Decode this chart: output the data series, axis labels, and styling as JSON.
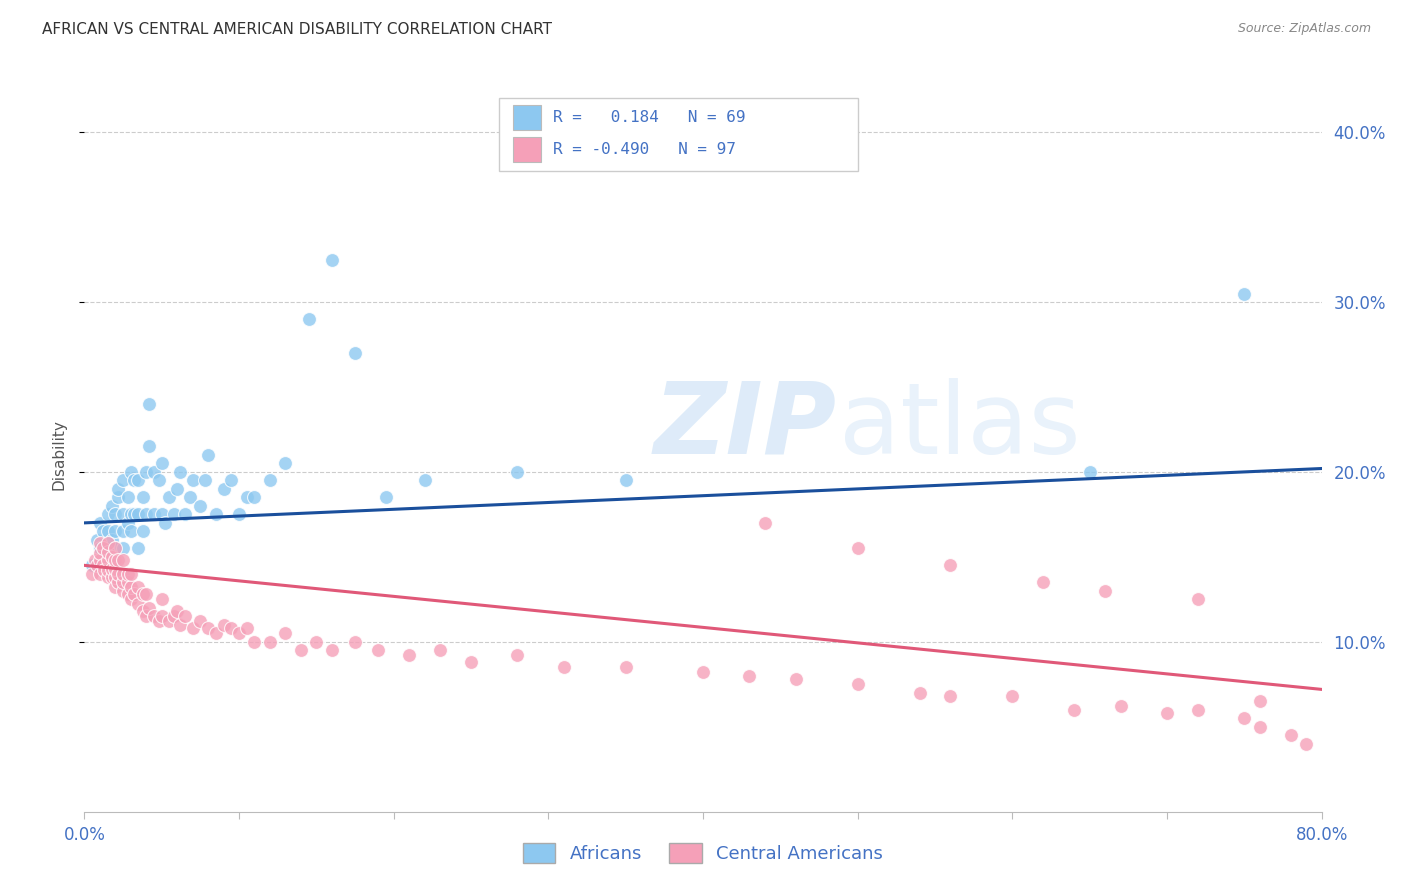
{
  "title": "AFRICAN VS CENTRAL AMERICAN DISABILITY CORRELATION CHART",
  "source": "Source: ZipAtlas.com",
  "ylabel": "Disability",
  "xlim": [
    0.0,
    0.8
  ],
  "ylim": [
    0.0,
    0.42
  ],
  "legend_R_african": "R =  0.184",
  "legend_N_african": "N = 69",
  "legend_R_central": "R = -0.490",
  "legend_N_central": "N = 97",
  "color_african": "#8DC8F0",
  "color_central": "#F5A0B8",
  "color_line_african": "#1A4F9C",
  "color_line_central": "#E05878",
  "color_title": "#333333",
  "color_source": "#888888",
  "color_axis": "#4472C4",
  "background_color": "#FFFFFF",
  "grid_color": "#CCCCCC",
  "african_line_start": 0.17,
  "african_line_end": 0.202,
  "central_line_start": 0.145,
  "central_line_end": 0.072,
  "african_x": [
    0.005,
    0.008,
    0.01,
    0.01,
    0.012,
    0.015,
    0.015,
    0.015,
    0.018,
    0.018,
    0.02,
    0.02,
    0.02,
    0.02,
    0.022,
    0.022,
    0.025,
    0.025,
    0.025,
    0.025,
    0.028,
    0.028,
    0.03,
    0.03,
    0.03,
    0.032,
    0.032,
    0.035,
    0.035,
    0.035,
    0.038,
    0.038,
    0.04,
    0.04,
    0.042,
    0.042,
    0.045,
    0.045,
    0.048,
    0.05,
    0.05,
    0.052,
    0.055,
    0.058,
    0.06,
    0.062,
    0.065,
    0.068,
    0.07,
    0.075,
    0.078,
    0.08,
    0.085,
    0.09,
    0.095,
    0.1,
    0.105,
    0.11,
    0.12,
    0.13,
    0.145,
    0.16,
    0.175,
    0.195,
    0.22,
    0.28,
    0.35,
    0.65,
    0.75
  ],
  "african_y": [
    0.145,
    0.16,
    0.155,
    0.17,
    0.165,
    0.155,
    0.165,
    0.175,
    0.16,
    0.18,
    0.145,
    0.155,
    0.165,
    0.175,
    0.185,
    0.19,
    0.155,
    0.165,
    0.175,
    0.195,
    0.17,
    0.185,
    0.165,
    0.175,
    0.2,
    0.175,
    0.195,
    0.155,
    0.175,
    0.195,
    0.165,
    0.185,
    0.175,
    0.2,
    0.215,
    0.24,
    0.175,
    0.2,
    0.195,
    0.175,
    0.205,
    0.17,
    0.185,
    0.175,
    0.19,
    0.2,
    0.175,
    0.185,
    0.195,
    0.18,
    0.195,
    0.21,
    0.175,
    0.19,
    0.195,
    0.175,
    0.185,
    0.185,
    0.195,
    0.205,
    0.29,
    0.325,
    0.27,
    0.185,
    0.195,
    0.2,
    0.195,
    0.2,
    0.305
  ],
  "central_x": [
    0.005,
    0.007,
    0.008,
    0.01,
    0.01,
    0.01,
    0.01,
    0.012,
    0.012,
    0.013,
    0.015,
    0.015,
    0.015,
    0.015,
    0.015,
    0.018,
    0.018,
    0.018,
    0.02,
    0.02,
    0.02,
    0.02,
    0.02,
    0.022,
    0.022,
    0.022,
    0.025,
    0.025,
    0.025,
    0.025,
    0.028,
    0.028,
    0.028,
    0.03,
    0.03,
    0.03,
    0.032,
    0.035,
    0.035,
    0.038,
    0.038,
    0.04,
    0.04,
    0.042,
    0.045,
    0.048,
    0.05,
    0.05,
    0.055,
    0.058,
    0.06,
    0.062,
    0.065,
    0.07,
    0.075,
    0.08,
    0.085,
    0.09,
    0.095,
    0.1,
    0.105,
    0.11,
    0.12,
    0.13,
    0.14,
    0.15,
    0.16,
    0.175,
    0.19,
    0.21,
    0.23,
    0.25,
    0.28,
    0.31,
    0.35,
    0.4,
    0.43,
    0.46,
    0.5,
    0.54,
    0.56,
    0.6,
    0.64,
    0.67,
    0.7,
    0.72,
    0.75,
    0.76,
    0.78,
    0.79,
    0.44,
    0.5,
    0.56,
    0.62,
    0.66,
    0.72,
    0.76
  ],
  "central_y": [
    0.14,
    0.148,
    0.145,
    0.14,
    0.148,
    0.152,
    0.158,
    0.145,
    0.155,
    0.142,
    0.138,
    0.142,
    0.148,
    0.153,
    0.158,
    0.138,
    0.143,
    0.15,
    0.132,
    0.138,
    0.143,
    0.148,
    0.155,
    0.135,
    0.14,
    0.148,
    0.13,
    0.135,
    0.14,
    0.148,
    0.128,
    0.135,
    0.14,
    0.125,
    0.132,
    0.14,
    0.128,
    0.122,
    0.132,
    0.118,
    0.128,
    0.115,
    0.128,
    0.12,
    0.115,
    0.112,
    0.115,
    0.125,
    0.112,
    0.115,
    0.118,
    0.11,
    0.115,
    0.108,
    0.112,
    0.108,
    0.105,
    0.11,
    0.108,
    0.105,
    0.108,
    0.1,
    0.1,
    0.105,
    0.095,
    0.1,
    0.095,
    0.1,
    0.095,
    0.092,
    0.095,
    0.088,
    0.092,
    0.085,
    0.085,
    0.082,
    0.08,
    0.078,
    0.075,
    0.07,
    0.068,
    0.068,
    0.06,
    0.062,
    0.058,
    0.06,
    0.055,
    0.05,
    0.045,
    0.04,
    0.17,
    0.155,
    0.145,
    0.135,
    0.13,
    0.125,
    0.065
  ]
}
